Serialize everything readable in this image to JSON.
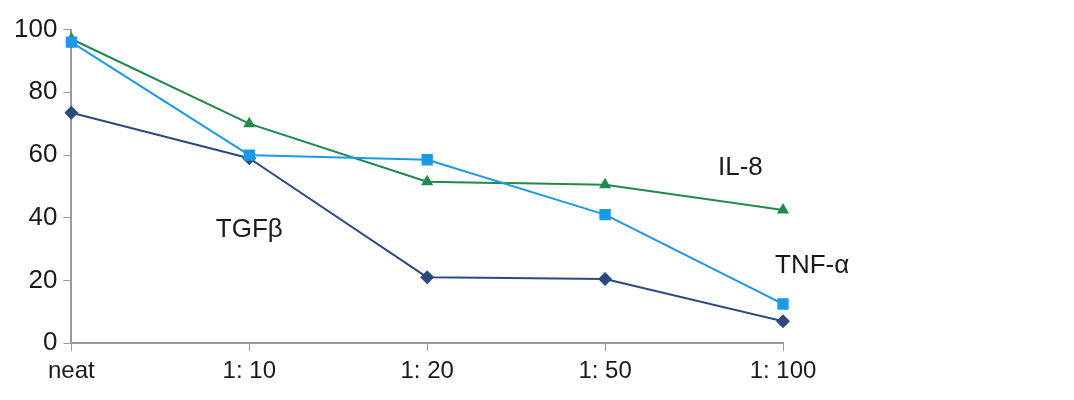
{
  "chart_data": {
    "type": "line",
    "categories": [
      "neat",
      "1: 10",
      "1: 20",
      "1: 50",
      "1: 100"
    ],
    "series": [
      {
        "name": "TGFβ",
        "color": "#2b4a7c",
        "marker": "diamond",
        "values": [
          73.5,
          59,
          21,
          20.5,
          7
        ]
      },
      {
        "name": "IL-8",
        "color": "#1f8a4c",
        "marker": "triangle",
        "values": [
          97,
          70,
          51.5,
          50.5,
          42.5
        ]
      },
      {
        "name": "TNF-α",
        "color": "#1a9ae6",
        "marker": "square",
        "values": [
          96,
          60,
          58.5,
          41,
          12.5
        ]
      }
    ],
    "ylim": [
      0,
      100
    ],
    "yticks": [
      0,
      20,
      40,
      60,
      80,
      100
    ],
    "grid": false,
    "legend": false
  }
}
